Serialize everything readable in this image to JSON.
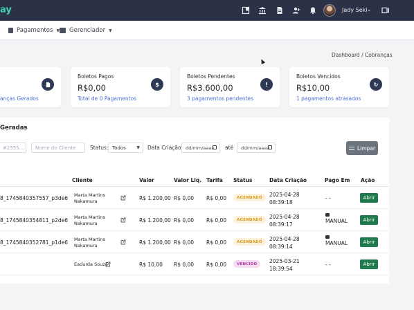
{
  "topbar": {
    "brand": "ay",
    "user_name": "Jady Seki"
  },
  "subnav": {
    "items": [
      {
        "label": "Pagamentos"
      },
      {
        "label": "Gerenciador"
      }
    ]
  },
  "breadcrumb": "Dashboard / Cobranças",
  "cards": [
    {
      "title": "",
      "value": "",
      "link": "anças Gerados",
      "icon": "document-icon"
    },
    {
      "title": "Boletos Pagos",
      "value": "R$0,00",
      "link": "Total de 0 Pagamentos",
      "icon": "dollar-icon",
      "badge": "$"
    },
    {
      "title": "Boletos Pendentes",
      "value": "R$3.600,00",
      "link": "3 pagamentos pendentes",
      "icon": "alert-icon",
      "badge": "!"
    },
    {
      "title": "Boletos Vencidos",
      "value": "R$10,00",
      "link": "1 pagamentos atrasados",
      "icon": "refresh-icon",
      "badge": "↻"
    }
  ],
  "panel": {
    "title": "Geradas"
  },
  "filters": {
    "id_placeholder": "#2555...",
    "client_placeholder": "Nome do Cliente",
    "status_label": "Status:",
    "status_value": "Todos",
    "date_label": "Data Criação:",
    "date_from": "dd/mm/aaaa",
    "ate_label": "até",
    "date_to": "dd/mm/aaaa",
    "clear_label": "Limpar"
  },
  "table": {
    "headers": {
      "cliente": "Cliente",
      "valor": "Valor",
      "valor_liq": "Valor Liq.",
      "tarifa": "Tarifa",
      "status": "Status",
      "data_criacao": "Data Criação",
      "pago_em": "Pago Em",
      "acao": "Ação"
    },
    "rows": [
      {
        "id": "8_1745840357557_p3de6",
        "cliente_l1": "Marta Martins",
        "cliente_l2": "Nakamura",
        "valor": "R$ 1.200,00",
        "valor_liq": "R$ 0,00",
        "tarifa": "R$ 0,00",
        "status": "AGENDADO",
        "data_l1": "2025-04-28",
        "data_l2": "08:39:18",
        "pago_em": "- -",
        "acao": "Abrir"
      },
      {
        "id": "8_1745840354811_p2de6",
        "cliente_l1": "Marta Martins",
        "cliente_l2": "Nakamura",
        "valor": "R$ 1.200,00",
        "valor_liq": "R$ 0,00",
        "tarifa": "R$ 0,00",
        "status": "AGENDADO",
        "data_l1": "2025-04-28",
        "data_l2": "08:39:17",
        "pago_em": "MANUAL",
        "acao": "Abrir"
      },
      {
        "id": "8_1745840352781_p1de6",
        "cliente_l1": "Marta Martins",
        "cliente_l2": "Nakamura",
        "valor": "R$ 1.200,00",
        "valor_liq": "R$ 0,00",
        "tarifa": "R$ 0,00",
        "status": "AGENDADO",
        "data_l1": "2025-04-28",
        "data_l2": "08:39:14",
        "pago_em": "MANUAL",
        "acao": "Abrir"
      },
      {
        "id": "",
        "cliente_l1": "Eadurda Souza",
        "cliente_l2": "",
        "valor": "R$ 10,00",
        "valor_liq": "R$ 0,00",
        "tarifa": "R$ 0,00",
        "status": "VENCIDO",
        "data_l1": "2025-03-21",
        "data_l2": "18:39:54",
        "pago_em": "- -",
        "acao": "Abrir"
      }
    ]
  }
}
